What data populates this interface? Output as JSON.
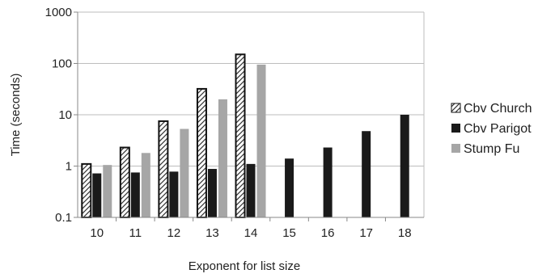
{
  "chart_data": {
    "type": "bar",
    "title": "",
    "xlabel": "Exponent for list size",
    "ylabel": "Time (seconds)",
    "yscale": "log",
    "ylim": [
      0.1,
      1000
    ],
    "grid": true,
    "legend_position": "right",
    "categories": [
      "10",
      "11",
      "12",
      "13",
      "14",
      "15",
      "16",
      "17",
      "18"
    ],
    "y_ticks": [
      "0.1",
      "1",
      "10",
      "100",
      "1000"
    ],
    "series": [
      {
        "name": "Cbv Church",
        "style": "hatched",
        "color": "#ffffff",
        "values": [
          1.1,
          2.3,
          7.5,
          32,
          150,
          null,
          null,
          null,
          null
        ]
      },
      {
        "name": "Cbv Parigot",
        "style": "solid",
        "color": "#1a1a1a",
        "values": [
          0.72,
          0.75,
          0.78,
          0.88,
          1.1,
          1.4,
          2.3,
          4.8,
          10
        ]
      },
      {
        "name": "Stump Fu",
        "style": "solid",
        "color": "#a6a6a6",
        "values": [
          1.05,
          1.8,
          5.3,
          20,
          95,
          null,
          null,
          null,
          null
        ]
      }
    ]
  }
}
